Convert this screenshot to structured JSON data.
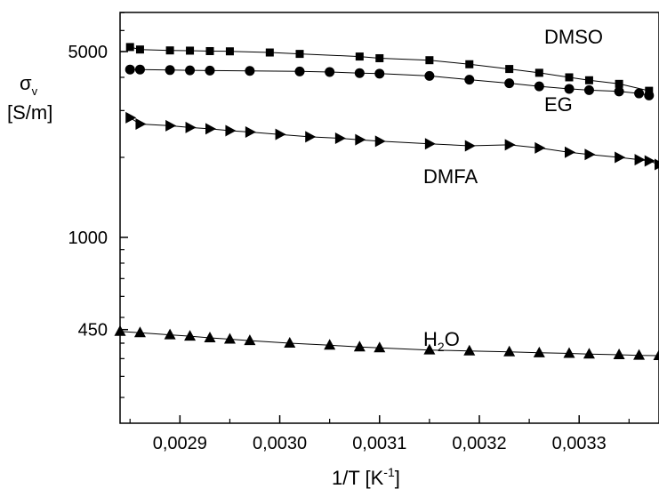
{
  "chart_data": {
    "type": "scatter",
    "title": "",
    "xlabel": {
      "main": "1/T [K",
      "sup": "-1",
      "tail": "]"
    },
    "ylabel": {
      "sigma": "σ",
      "sub": "v",
      "unit": "[S/m]"
    },
    "xlim": [
      0.00284,
      0.00338
    ],
    "ylim": [
      200,
      7000
    ],
    "yscale": "log",
    "grid": false,
    "legend": "none",
    "x_ticks": [
      {
        "value": 0.0029,
        "label": "0,0029"
      },
      {
        "value": 0.003,
        "label": "0,0030"
      },
      {
        "value": 0.0031,
        "label": "0,0031"
      },
      {
        "value": 0.0032,
        "label": "0,0032"
      },
      {
        "value": 0.0033,
        "label": "0,0033"
      }
    ],
    "y_ticks": [
      {
        "value": 450,
        "label": "450"
      },
      {
        "value": 1000,
        "label": "1000"
      },
      {
        "value": 5000,
        "label": "5000"
      }
    ],
    "series": [
      {
        "name": "DMSO",
        "marker": "square",
        "color": "#000000",
        "points": [
          [
            0.00285,
            5200
          ],
          [
            0.00286,
            5090
          ],
          [
            0.00289,
            5050
          ],
          [
            0.00291,
            5040
          ],
          [
            0.00293,
            5020
          ],
          [
            0.00295,
            5010
          ],
          [
            0.00299,
            4960
          ],
          [
            0.00302,
            4900
          ],
          [
            0.00308,
            4790
          ],
          [
            0.0031,
            4720
          ],
          [
            0.00315,
            4640
          ],
          [
            0.00319,
            4480
          ],
          [
            0.00323,
            4300
          ],
          [
            0.00326,
            4160
          ],
          [
            0.00329,
            4000
          ],
          [
            0.00331,
            3900
          ],
          [
            0.00334,
            3780
          ],
          [
            0.00337,
            3560
          ]
        ]
      },
      {
        "name": "EG",
        "marker": "circle",
        "color": "#000000",
        "points": [
          [
            0.00285,
            4280
          ],
          [
            0.00286,
            4280
          ],
          [
            0.00289,
            4260
          ],
          [
            0.00291,
            4250
          ],
          [
            0.00293,
            4240
          ],
          [
            0.00297,
            4230
          ],
          [
            0.00302,
            4210
          ],
          [
            0.00305,
            4190
          ],
          [
            0.00308,
            4150
          ],
          [
            0.0031,
            4130
          ],
          [
            0.00315,
            4050
          ],
          [
            0.00319,
            3920
          ],
          [
            0.00323,
            3800
          ],
          [
            0.00326,
            3700
          ],
          [
            0.00329,
            3620
          ],
          [
            0.00331,
            3580
          ],
          [
            0.00334,
            3540
          ],
          [
            0.00336,
            3480
          ],
          [
            0.00337,
            3420
          ]
        ]
      },
      {
        "name": "DMFA",
        "marker": "triangle-right",
        "color": "#000000",
        "points": [
          [
            0.00285,
            2820
          ],
          [
            0.00286,
            2670
          ],
          [
            0.00289,
            2630
          ],
          [
            0.00291,
            2590
          ],
          [
            0.00293,
            2560
          ],
          [
            0.00295,
            2520
          ],
          [
            0.00297,
            2490
          ],
          [
            0.003,
            2440
          ],
          [
            0.00303,
            2390
          ],
          [
            0.00306,
            2360
          ],
          [
            0.00308,
            2330
          ],
          [
            0.0031,
            2300
          ],
          [
            0.00315,
            2250
          ],
          [
            0.00319,
            2210
          ],
          [
            0.00323,
            2230
          ],
          [
            0.00326,
            2170
          ],
          [
            0.00329,
            2090
          ],
          [
            0.00331,
            2050
          ],
          [
            0.00334,
            2000
          ],
          [
            0.00336,
            1960
          ],
          [
            0.00337,
            1940
          ],
          [
            0.00338,
            1880
          ]
        ]
      },
      {
        "name": "H2O",
        "label_main": "H",
        "label_sub": "2",
        "label_tail": "O",
        "marker": "triangle-up",
        "color": "#000000",
        "points": [
          [
            0.00284,
            443
          ],
          [
            0.00286,
            438
          ],
          [
            0.00289,
            430
          ],
          [
            0.00291,
            425
          ],
          [
            0.00293,
            419
          ],
          [
            0.00295,
            414
          ],
          [
            0.00297,
            409
          ],
          [
            0.00301,
            400
          ],
          [
            0.00305,
            393
          ],
          [
            0.00308,
            387
          ],
          [
            0.0031,
            384
          ],
          [
            0.00315,
            377
          ],
          [
            0.00319,
            374
          ],
          [
            0.00323,
            371
          ],
          [
            0.00326,
            368
          ],
          [
            0.00329,
            366
          ],
          [
            0.00331,
            364
          ],
          [
            0.00334,
            362
          ],
          [
            0.00336,
            360
          ],
          [
            0.00338,
            359
          ]
        ]
      }
    ]
  }
}
